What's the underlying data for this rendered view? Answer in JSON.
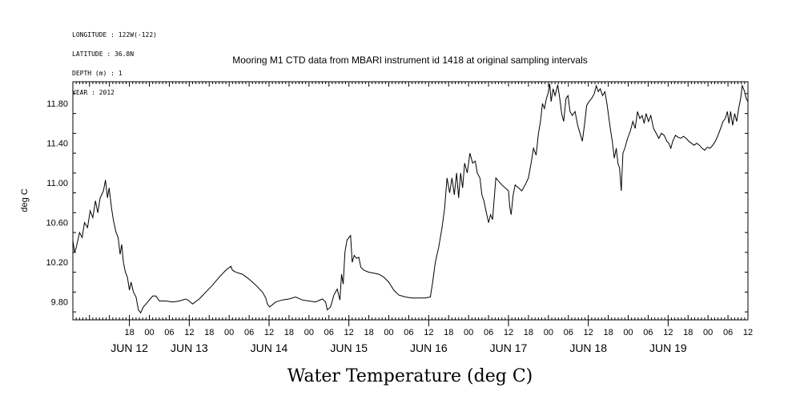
{
  "meta_lines": [
    "LONGITUDE : 122W(-122)",
    "LATITUDE : 36.8N",
    "DEPTH (m) : 1",
    "YEAR : 2012"
  ],
  "chart_data": {
    "type": "line",
    "title": "Mooring M1 CTD data from MBARI instrument id 1418 at original sampling intervals",
    "xlabel": "Water Temperature (deg C)",
    "ylabel": "deg C",
    "xlim": [
      -23,
      180
    ],
    "ylim": [
      9.62,
      12.02
    ],
    "yticks": [
      9.8,
      10.2,
      10.6,
      11.0,
      11.4,
      11.8
    ],
    "ytick_labels": [
      "9.80",
      "10.20",
      "10.60",
      "11.00",
      "11.40",
      "11.80"
    ],
    "x_unit": "hours since JUN 12 00:00 (2012)",
    "hour_ticks": [
      {
        "h": -6,
        "label": "18"
      },
      {
        "h": 0,
        "label": "00"
      },
      {
        "h": 6,
        "label": "06"
      },
      {
        "h": 12,
        "label": "12"
      },
      {
        "h": 18,
        "label": "18"
      },
      {
        "h": 24,
        "label": "00"
      },
      {
        "h": 30,
        "label": "06"
      },
      {
        "h": 36,
        "label": "12"
      },
      {
        "h": 42,
        "label": "18"
      },
      {
        "h": 48,
        "label": "00"
      },
      {
        "h": 54,
        "label": "06"
      },
      {
        "h": 60,
        "label": "12"
      },
      {
        "h": 66,
        "label": "18"
      },
      {
        "h": 72,
        "label": "00"
      },
      {
        "h": 78,
        "label": "06"
      },
      {
        "h": 84,
        "label": "12"
      },
      {
        "h": 90,
        "label": "18"
      },
      {
        "h": 96,
        "label": "00"
      },
      {
        "h": 102,
        "label": "06"
      },
      {
        "h": 108,
        "label": "12"
      },
      {
        "h": 114,
        "label": "18"
      },
      {
        "h": 120,
        "label": "00"
      },
      {
        "h": 126,
        "label": "06"
      },
      {
        "h": 132,
        "label": "12"
      },
      {
        "h": 138,
        "label": "18"
      },
      {
        "h": 144,
        "label": "00"
      },
      {
        "h": 150,
        "label": "06"
      },
      {
        "h": 156,
        "label": "12"
      },
      {
        "h": 162,
        "label": "18"
      },
      {
        "h": 168,
        "label": "00"
      },
      {
        "h": 174,
        "label": "06"
      },
      {
        "h": 180,
        "label": "12"
      }
    ],
    "date_labels": [
      {
        "h": -6,
        "label": "JUN 12"
      },
      {
        "h": 12,
        "label": "JUN 13"
      },
      {
        "h": 36,
        "label": "JUN 14"
      },
      {
        "h": 60,
        "label": "JUN 15"
      },
      {
        "h": 84,
        "label": "JUN 16"
      },
      {
        "h": 108,
        "label": "JUN 17"
      },
      {
        "h": 132,
        "label": "JUN 18"
      },
      {
        "h": 156,
        "label": "JUN 19"
      }
    ],
    "series": [
      {
        "values": [
          [
            -23,
            10.42
          ],
          [
            -22.5,
            10.3
          ],
          [
            -22,
            10.35
          ],
          [
            -21,
            10.5
          ],
          [
            -20.2,
            10.45
          ],
          [
            -19.5,
            10.6
          ],
          [
            -18.6,
            10.55
          ],
          [
            -17.8,
            10.72
          ],
          [
            -17,
            10.65
          ],
          [
            -16.2,
            10.82
          ],
          [
            -15.5,
            10.7
          ],
          [
            -14.8,
            10.85
          ],
          [
            -13.8,
            10.92
          ],
          [
            -13.2,
            11.03
          ],
          [
            -12.6,
            10.85
          ],
          [
            -12.1,
            10.95
          ],
          [
            -11.4,
            10.75
          ],
          [
            -10.8,
            10.62
          ],
          [
            -10,
            10.5
          ],
          [
            -9.4,
            10.45
          ],
          [
            -8.8,
            10.28
          ],
          [
            -8.3,
            10.38
          ],
          [
            -7.8,
            10.2
          ],
          [
            -7.2,
            10.1
          ],
          [
            -6.6,
            10.05
          ],
          [
            -6,
            9.92
          ],
          [
            -5.5,
            10.0
          ],
          [
            -4.8,
            9.9
          ],
          [
            -4,
            9.85
          ],
          [
            -3.3,
            9.72
          ],
          [
            -2.6,
            9.69
          ],
          [
            -1.8,
            9.75
          ],
          [
            -1,
            9.78
          ],
          [
            0,
            9.82
          ],
          [
            1,
            9.86
          ],
          [
            2,
            9.86
          ],
          [
            3,
            9.81
          ],
          [
            5,
            9.81
          ],
          [
            7,
            9.8
          ],
          [
            9,
            9.81
          ],
          [
            11,
            9.83
          ],
          [
            12,
            9.81
          ],
          [
            13,
            9.78
          ],
          [
            15,
            9.83
          ],
          [
            17,
            9.9
          ],
          [
            19,
            9.97
          ],
          [
            21,
            10.05
          ],
          [
            23,
            10.12
          ],
          [
            24.5,
            10.16
          ],
          [
            25,
            10.12
          ],
          [
            26,
            10.1
          ],
          [
            28,
            10.08
          ],
          [
            30,
            10.03
          ],
          [
            32,
            9.97
          ],
          [
            34,
            9.9
          ],
          [
            35,
            9.84
          ],
          [
            35.5,
            9.78
          ],
          [
            36.2,
            9.75
          ],
          [
            38,
            9.8
          ],
          [
            40,
            9.82
          ],
          [
            42,
            9.83
          ],
          [
            44,
            9.85
          ],
          [
            46,
            9.82
          ],
          [
            48,
            9.81
          ],
          [
            50,
            9.8
          ],
          [
            52,
            9.83
          ],
          [
            53,
            9.8
          ],
          [
            53.5,
            9.72
          ],
          [
            54.5,
            9.75
          ],
          [
            55.5,
            9.87
          ],
          [
            56.5,
            9.93
          ],
          [
            57.3,
            9.82
          ],
          [
            57.8,
            10.08
          ],
          [
            58.3,
            9.98
          ],
          [
            58.8,
            10.3
          ],
          [
            59.4,
            10.42
          ],
          [
            60,
            10.45
          ],
          [
            60.5,
            10.47
          ],
          [
            61,
            10.2
          ],
          [
            61.6,
            10.27
          ],
          [
            62.3,
            10.24
          ],
          [
            63,
            10.25
          ],
          [
            63.6,
            10.15
          ],
          [
            64.5,
            10.12
          ],
          [
            66,
            10.1
          ],
          [
            67.5,
            10.09
          ],
          [
            69,
            10.08
          ],
          [
            70.5,
            10.05
          ],
          [
            72,
            10.0
          ],
          [
            73.5,
            9.92
          ],
          [
            75,
            9.87
          ],
          [
            77,
            9.85
          ],
          [
            79,
            9.84
          ],
          [
            81,
            9.84
          ],
          [
            83,
            9.84
          ],
          [
            84.5,
            9.85
          ],
          [
            85.2,
            10.0
          ],
          [
            86,
            10.2
          ],
          [
            87,
            10.35
          ],
          [
            88,
            10.55
          ],
          [
            88.8,
            10.75
          ],
          [
            89.5,
            11.05
          ],
          [
            90.3,
            10.9
          ],
          [
            91,
            11.05
          ],
          [
            91.7,
            10.88
          ],
          [
            92.4,
            11.1
          ],
          [
            93,
            10.85
          ],
          [
            93.6,
            11.1
          ],
          [
            94.2,
            10.95
          ],
          [
            94.8,
            11.2
          ],
          [
            95.6,
            11.1
          ],
          [
            96.4,
            11.3
          ],
          [
            97.2,
            11.2
          ],
          [
            98,
            11.22
          ],
          [
            98.6,
            11.1
          ],
          [
            99.4,
            11.05
          ],
          [
            100,
            10.88
          ],
          [
            100.6,
            10.82
          ],
          [
            101.2,
            10.72
          ],
          [
            102,
            10.6
          ],
          [
            102.6,
            10.68
          ],
          [
            103.2,
            10.63
          ],
          [
            104.2,
            11.05
          ],
          [
            105,
            11.02
          ],
          [
            106,
            10.98
          ],
          [
            107,
            10.95
          ],
          [
            108,
            10.92
          ],
          [
            108.4,
            10.75
          ],
          [
            108.8,
            10.68
          ],
          [
            109.4,
            10.88
          ],
          [
            110,
            10.98
          ],
          [
            111,
            10.95
          ],
          [
            112,
            10.92
          ],
          [
            113,
            10.98
          ],
          [
            114,
            11.05
          ],
          [
            114.8,
            11.2
          ],
          [
            115.5,
            11.35
          ],
          [
            116.3,
            11.28
          ],
          [
            117,
            11.5
          ],
          [
            117.6,
            11.62
          ],
          [
            118.2,
            11.8
          ],
          [
            118.8,
            11.75
          ],
          [
            119.4,
            11.85
          ],
          [
            119.9,
            11.9
          ],
          [
            120.4,
            12.0
          ],
          [
            120.8,
            11.82
          ],
          [
            121.4,
            11.95
          ],
          [
            122,
            11.88
          ],
          [
            122.8,
            11.99
          ],
          [
            123.4,
            11.85
          ],
          [
            124,
            11.7
          ],
          [
            124.6,
            11.62
          ],
          [
            125.3,
            11.85
          ],
          [
            125.9,
            11.88
          ],
          [
            126.5,
            11.72
          ],
          [
            127.2,
            11.68
          ],
          [
            128,
            11.72
          ],
          [
            128.8,
            11.58
          ],
          [
            129.5,
            11.5
          ],
          [
            130.2,
            11.42
          ],
          [
            130.9,
            11.6
          ],
          [
            131.5,
            11.78
          ],
          [
            132.2,
            11.82
          ],
          [
            133,
            11.85
          ],
          [
            133.8,
            11.9
          ],
          [
            134.4,
            11.98
          ],
          [
            135,
            11.92
          ],
          [
            135.6,
            11.95
          ],
          [
            136.3,
            11.88
          ],
          [
            137,
            11.92
          ],
          [
            137.6,
            11.8
          ],
          [
            138,
            11.7
          ],
          [
            138.6,
            11.55
          ],
          [
            139.2,
            11.42
          ],
          [
            139.8,
            11.25
          ],
          [
            140.4,
            11.35
          ],
          [
            140.9,
            11.2
          ],
          [
            141.4,
            11.15
          ],
          [
            141.9,
            10.92
          ],
          [
            142.4,
            11.3
          ],
          [
            143,
            11.35
          ],
          [
            143.8,
            11.45
          ],
          [
            144.6,
            11.52
          ],
          [
            145.4,
            11.62
          ],
          [
            146.1,
            11.55
          ],
          [
            146.8,
            11.72
          ],
          [
            147.5,
            11.65
          ],
          [
            148.2,
            11.68
          ],
          [
            148.8,
            11.6
          ],
          [
            149.4,
            11.7
          ],
          [
            150.1,
            11.62
          ],
          [
            150.8,
            11.68
          ],
          [
            151.6,
            11.55
          ],
          [
            152.4,
            11.5
          ],
          [
            153.2,
            11.45
          ],
          [
            154,
            11.5
          ],
          [
            154.8,
            11.48
          ],
          [
            155.6,
            11.42
          ],
          [
            156.2,
            11.4
          ],
          [
            156.8,
            11.35
          ],
          [
            157.4,
            11.42
          ],
          [
            158.2,
            11.48
          ],
          [
            159,
            11.46
          ],
          [
            159.8,
            11.45
          ],
          [
            160.6,
            11.47
          ],
          [
            161.4,
            11.45
          ],
          [
            162.2,
            11.42
          ],
          [
            163,
            11.4
          ],
          [
            163.8,
            11.38
          ],
          [
            164.6,
            11.4
          ],
          [
            165.4,
            11.38
          ],
          [
            166.2,
            11.35
          ],
          [
            167,
            11.33
          ],
          [
            167.8,
            11.36
          ],
          [
            168.6,
            11.35
          ],
          [
            169.4,
            11.38
          ],
          [
            170.2,
            11.42
          ],
          [
            171,
            11.48
          ],
          [
            171.8,
            11.55
          ],
          [
            172.5,
            11.62
          ],
          [
            173.2,
            11.65
          ],
          [
            173.8,
            11.72
          ],
          [
            174.3,
            11.6
          ],
          [
            174.8,
            11.72
          ],
          [
            175.4,
            11.58
          ],
          [
            176,
            11.7
          ],
          [
            176.6,
            11.62
          ],
          [
            177.2,
            11.75
          ],
          [
            177.8,
            11.85
          ],
          [
            178.3,
            11.98
          ],
          [
            178.9,
            11.93
          ],
          [
            179.5,
            11.85
          ],
          [
            180,
            11.82
          ]
        ]
      }
    ]
  }
}
